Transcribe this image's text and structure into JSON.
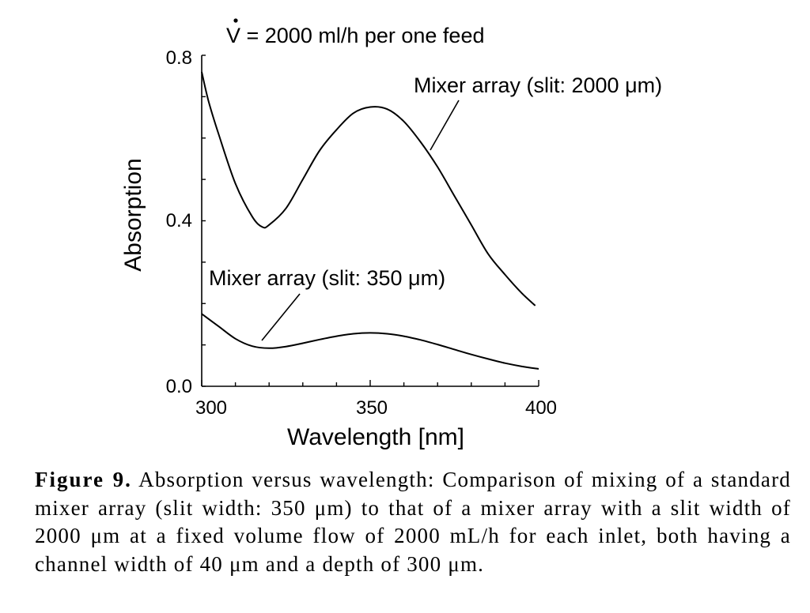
{
  "chart_data": {
    "type": "line",
    "title": "V = 2000 ml/h per one feed",
    "xlabel": "Wavelength [nm]",
    "ylabel": "Absorption",
    "xlim": [
      300,
      400
    ],
    "ylim": [
      0.0,
      0.8
    ],
    "x_ticks": [
      "300",
      "350",
      "400"
    ],
    "y_ticks": [
      "0.0",
      "0.4",
      "0.8"
    ],
    "grid": false,
    "series": [
      {
        "name": "Mixer array (slit: 2000 μm)",
        "x": [
          300,
          302,
          305,
          310,
          315,
          318,
          320,
          325,
          330,
          335,
          340,
          345,
          350,
          355,
          360,
          365,
          370,
          375,
          380,
          385,
          390,
          395,
          399
        ],
        "y": [
          0.76,
          0.69,
          0.61,
          0.49,
          0.41,
          0.385,
          0.39,
          0.43,
          0.5,
          0.57,
          0.62,
          0.66,
          0.675,
          0.67,
          0.64,
          0.59,
          0.53,
          0.46,
          0.39,
          0.32,
          0.27,
          0.225,
          0.195
        ]
      },
      {
        "name": "Mixer array (slit: 350 μm)",
        "x": [
          300,
          305,
          310,
          315,
          320,
          325,
          330,
          335,
          340,
          345,
          350,
          355,
          360,
          365,
          370,
          375,
          380,
          385,
          390,
          395,
          400
        ],
        "y": [
          0.175,
          0.145,
          0.115,
          0.097,
          0.092,
          0.096,
          0.104,
          0.113,
          0.121,
          0.127,
          0.129,
          0.127,
          0.121,
          0.112,
          0.101,
          0.089,
          0.077,
          0.066,
          0.056,
          0.048,
          0.042
        ]
      }
    ],
    "annotations": {
      "upper": "Mixer array (slit: 2000 μm)",
      "lower": "Mixer array (slit: 350 μm)"
    }
  },
  "caption": {
    "label": "Figure 9.",
    "text": "Absorption versus wavelength: Comparison of mixing of a standard mixer array (slit width: 350 μm) to that of a mixer array with a slit width of 2000 μm at a fixed volume flow of 2000 mL/h for each inlet, both having a channel width of 40 μm and a depth of 300 μm."
  }
}
